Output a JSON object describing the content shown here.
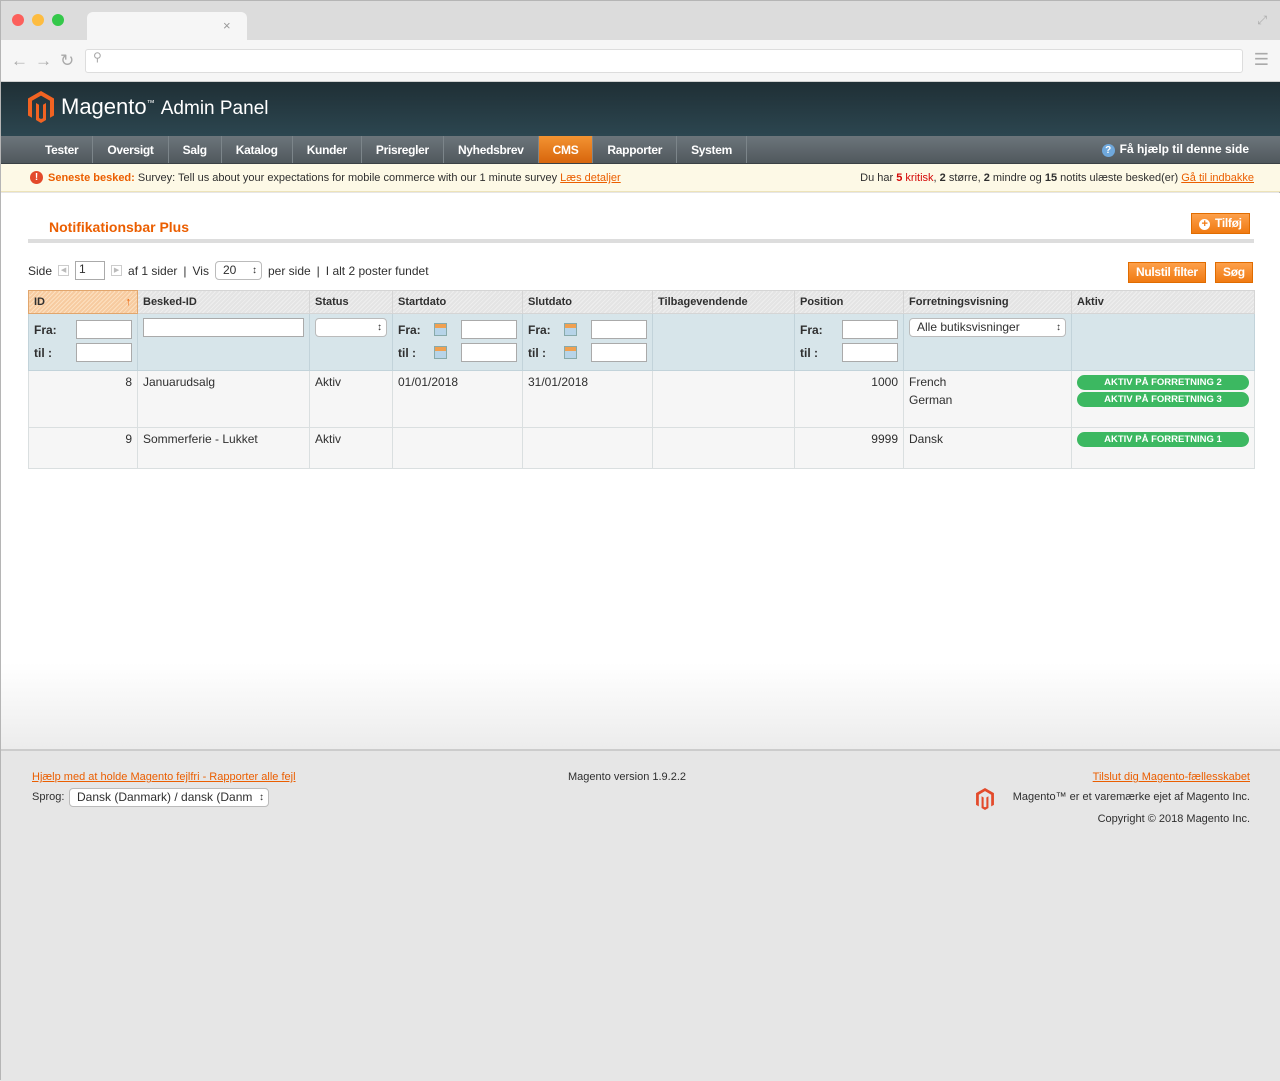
{
  "browser": {
    "close": "×"
  },
  "header": {
    "logo": "Magento",
    "logo_tm": "™",
    "title": "Admin Panel"
  },
  "nav": {
    "items": [
      "Tester",
      "Oversigt",
      "Salg",
      "Katalog",
      "Kunder",
      "Prisregler",
      "Nyhedsbrev",
      "CMS",
      "Rapporter",
      "System"
    ],
    "active": "CMS",
    "help": "Få hjælp til denne side"
  },
  "notice": {
    "label": "Seneste besked:",
    "text": "Survey: Tell us about your expectations for mobile commerce with our 1 minute survey",
    "link": "Læs detaljer",
    "summary_pre": "Du har",
    "critical": "5 kritisk",
    "major_n": "2",
    "major": "større,",
    "minor_n": "2",
    "minor": "mindre og",
    "notice_n": "15",
    "notice_text": "notits ulæste besked(er)",
    "inbox": "Gå til indbakke"
  },
  "page": {
    "title": "Notifikationsbar Plus",
    "add_button": "Tilføj"
  },
  "pager": {
    "side": "Side",
    "page": "1",
    "of": "af 1 sider",
    "sep": "|",
    "vis": "Vis",
    "per_page": "20",
    "per_side": "per side",
    "total": "I alt 2 poster fundet",
    "reset": "Nulstil filter",
    "search": "Søg"
  },
  "grid": {
    "columns": [
      "ID",
      "Besked-ID",
      "Status",
      "Startdato",
      "Slutdato",
      "Tilbagevendende",
      "Position",
      "Forretningsvisning",
      "Aktiv"
    ],
    "filter": {
      "from": "Fra:",
      "to": "til :",
      "store_select": "Alle butiksvisninger"
    },
    "rows": [
      {
        "id": "8",
        "message": "Januarudsalg",
        "status": "Aktiv",
        "start": "01/01/2018",
        "end": "31/01/2018",
        "recurring": "",
        "position": "1000",
        "stores": [
          "French",
          "German"
        ],
        "active": [
          "AKTIV PÅ FORRETNING 2",
          "AKTIV PÅ FORRETNING 3"
        ]
      },
      {
        "id": "9",
        "message": "Sommerferie - Lukket",
        "status": "Aktiv",
        "start": "",
        "end": "",
        "recurring": "",
        "position": "9999",
        "stores": [
          "Dansk"
        ],
        "active": [
          "AKTIV PÅ FORRETNING 1"
        ]
      }
    ]
  },
  "footer": {
    "bug_link": "Hjælp med at holde Magento fejlfri - Rapporter alle fejl",
    "language_label": "Sprog:",
    "language": "Dansk (Danmark) / dansk (Danm",
    "version": "Magento version 1.9.2.2",
    "community": "Tilslut dig Magento-fællesskabet",
    "trademark": "Magento™ er et varemærke ejet af Magento Inc.",
    "copyright": "Copyright © 2018 Magento Inc."
  },
  "colors": {
    "accent": "#eb5e00",
    "badge": "#3cb861",
    "critical": "#d40707"
  }
}
